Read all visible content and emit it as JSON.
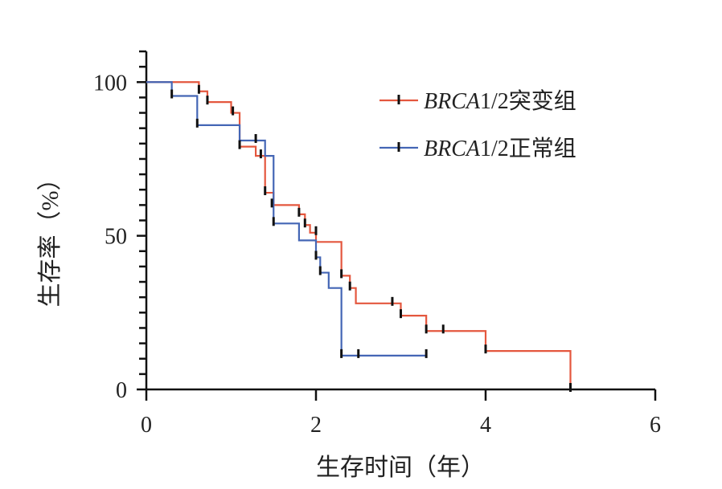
{
  "chart_data": {
    "type": "line",
    "step": true,
    "xlabel": "生存时间（年）",
    "ylabel": "生存率（%）",
    "xlim": [
      0,
      6
    ],
    "ylim": [
      0,
      110
    ],
    "xticks": [
      0,
      2,
      4,
      6
    ],
    "yticks": [
      0,
      50,
      100
    ],
    "yminor_step": 5,
    "grid": false,
    "legend": "top-right",
    "censor_color": "#111111",
    "series": [
      {
        "label_italic": "BRCA",
        "label_plain": "1/2突变组",
        "color": "#e4573e",
        "points": [
          [
            0,
            100
          ],
          [
            0.62,
            97
          ],
          [
            0.72,
            93.5
          ],
          [
            1.0,
            90
          ],
          [
            1.1,
            79
          ],
          [
            1.29,
            76
          ],
          [
            1.4,
            64
          ],
          [
            1.5,
            60
          ],
          [
            1.8,
            57
          ],
          [
            1.87,
            53.5
          ],
          [
            1.93,
            51
          ],
          [
            2.0,
            48
          ],
          [
            2.3,
            37
          ],
          [
            2.4,
            33
          ],
          [
            2.47,
            28
          ],
          [
            3.0,
            24
          ],
          [
            3.3,
            19
          ],
          [
            4.0,
            12.5
          ],
          [
            5.0,
            0
          ]
        ],
        "end_x": 5.0,
        "censored": [
          [
            0.62,
            97
          ],
          [
            0.72,
            93.5
          ],
          [
            1.02,
            90
          ],
          [
            1.1,
            79
          ],
          [
            1.35,
            76
          ],
          [
            1.4,
            64
          ],
          [
            1.48,
            60
          ],
          [
            1.8,
            57
          ],
          [
            1.87,
            53.5
          ],
          [
            2.0,
            51
          ],
          [
            2.3,
            37
          ],
          [
            2.4,
            33
          ],
          [
            2.9,
            28
          ],
          [
            3.0,
            24
          ],
          [
            3.3,
            19
          ],
          [
            3.5,
            19
          ],
          [
            4.0,
            12.5
          ],
          [
            5.0,
            0
          ]
        ]
      },
      {
        "label_italic": "BRCA",
        "label_plain": "1/2正常组",
        "color": "#4466b5",
        "points": [
          [
            0,
            100
          ],
          [
            0.3,
            95.5
          ],
          [
            0.6,
            86
          ],
          [
            1.1,
            81
          ],
          [
            1.4,
            76
          ],
          [
            1.5,
            54
          ],
          [
            1.8,
            48.5
          ],
          [
            2.0,
            43
          ],
          [
            2.05,
            38
          ],
          [
            2.15,
            33
          ],
          [
            2.3,
            11
          ]
        ],
        "end_x": 3.3,
        "censored": [
          [
            0.3,
            95.5
          ],
          [
            0.6,
            86
          ],
          [
            1.29,
            81
          ],
          [
            1.5,
            54
          ],
          [
            2.0,
            43
          ],
          [
            2.05,
            38
          ],
          [
            2.3,
            11
          ],
          [
            2.5,
            11
          ],
          [
            3.3,
            11
          ]
        ]
      }
    ]
  }
}
